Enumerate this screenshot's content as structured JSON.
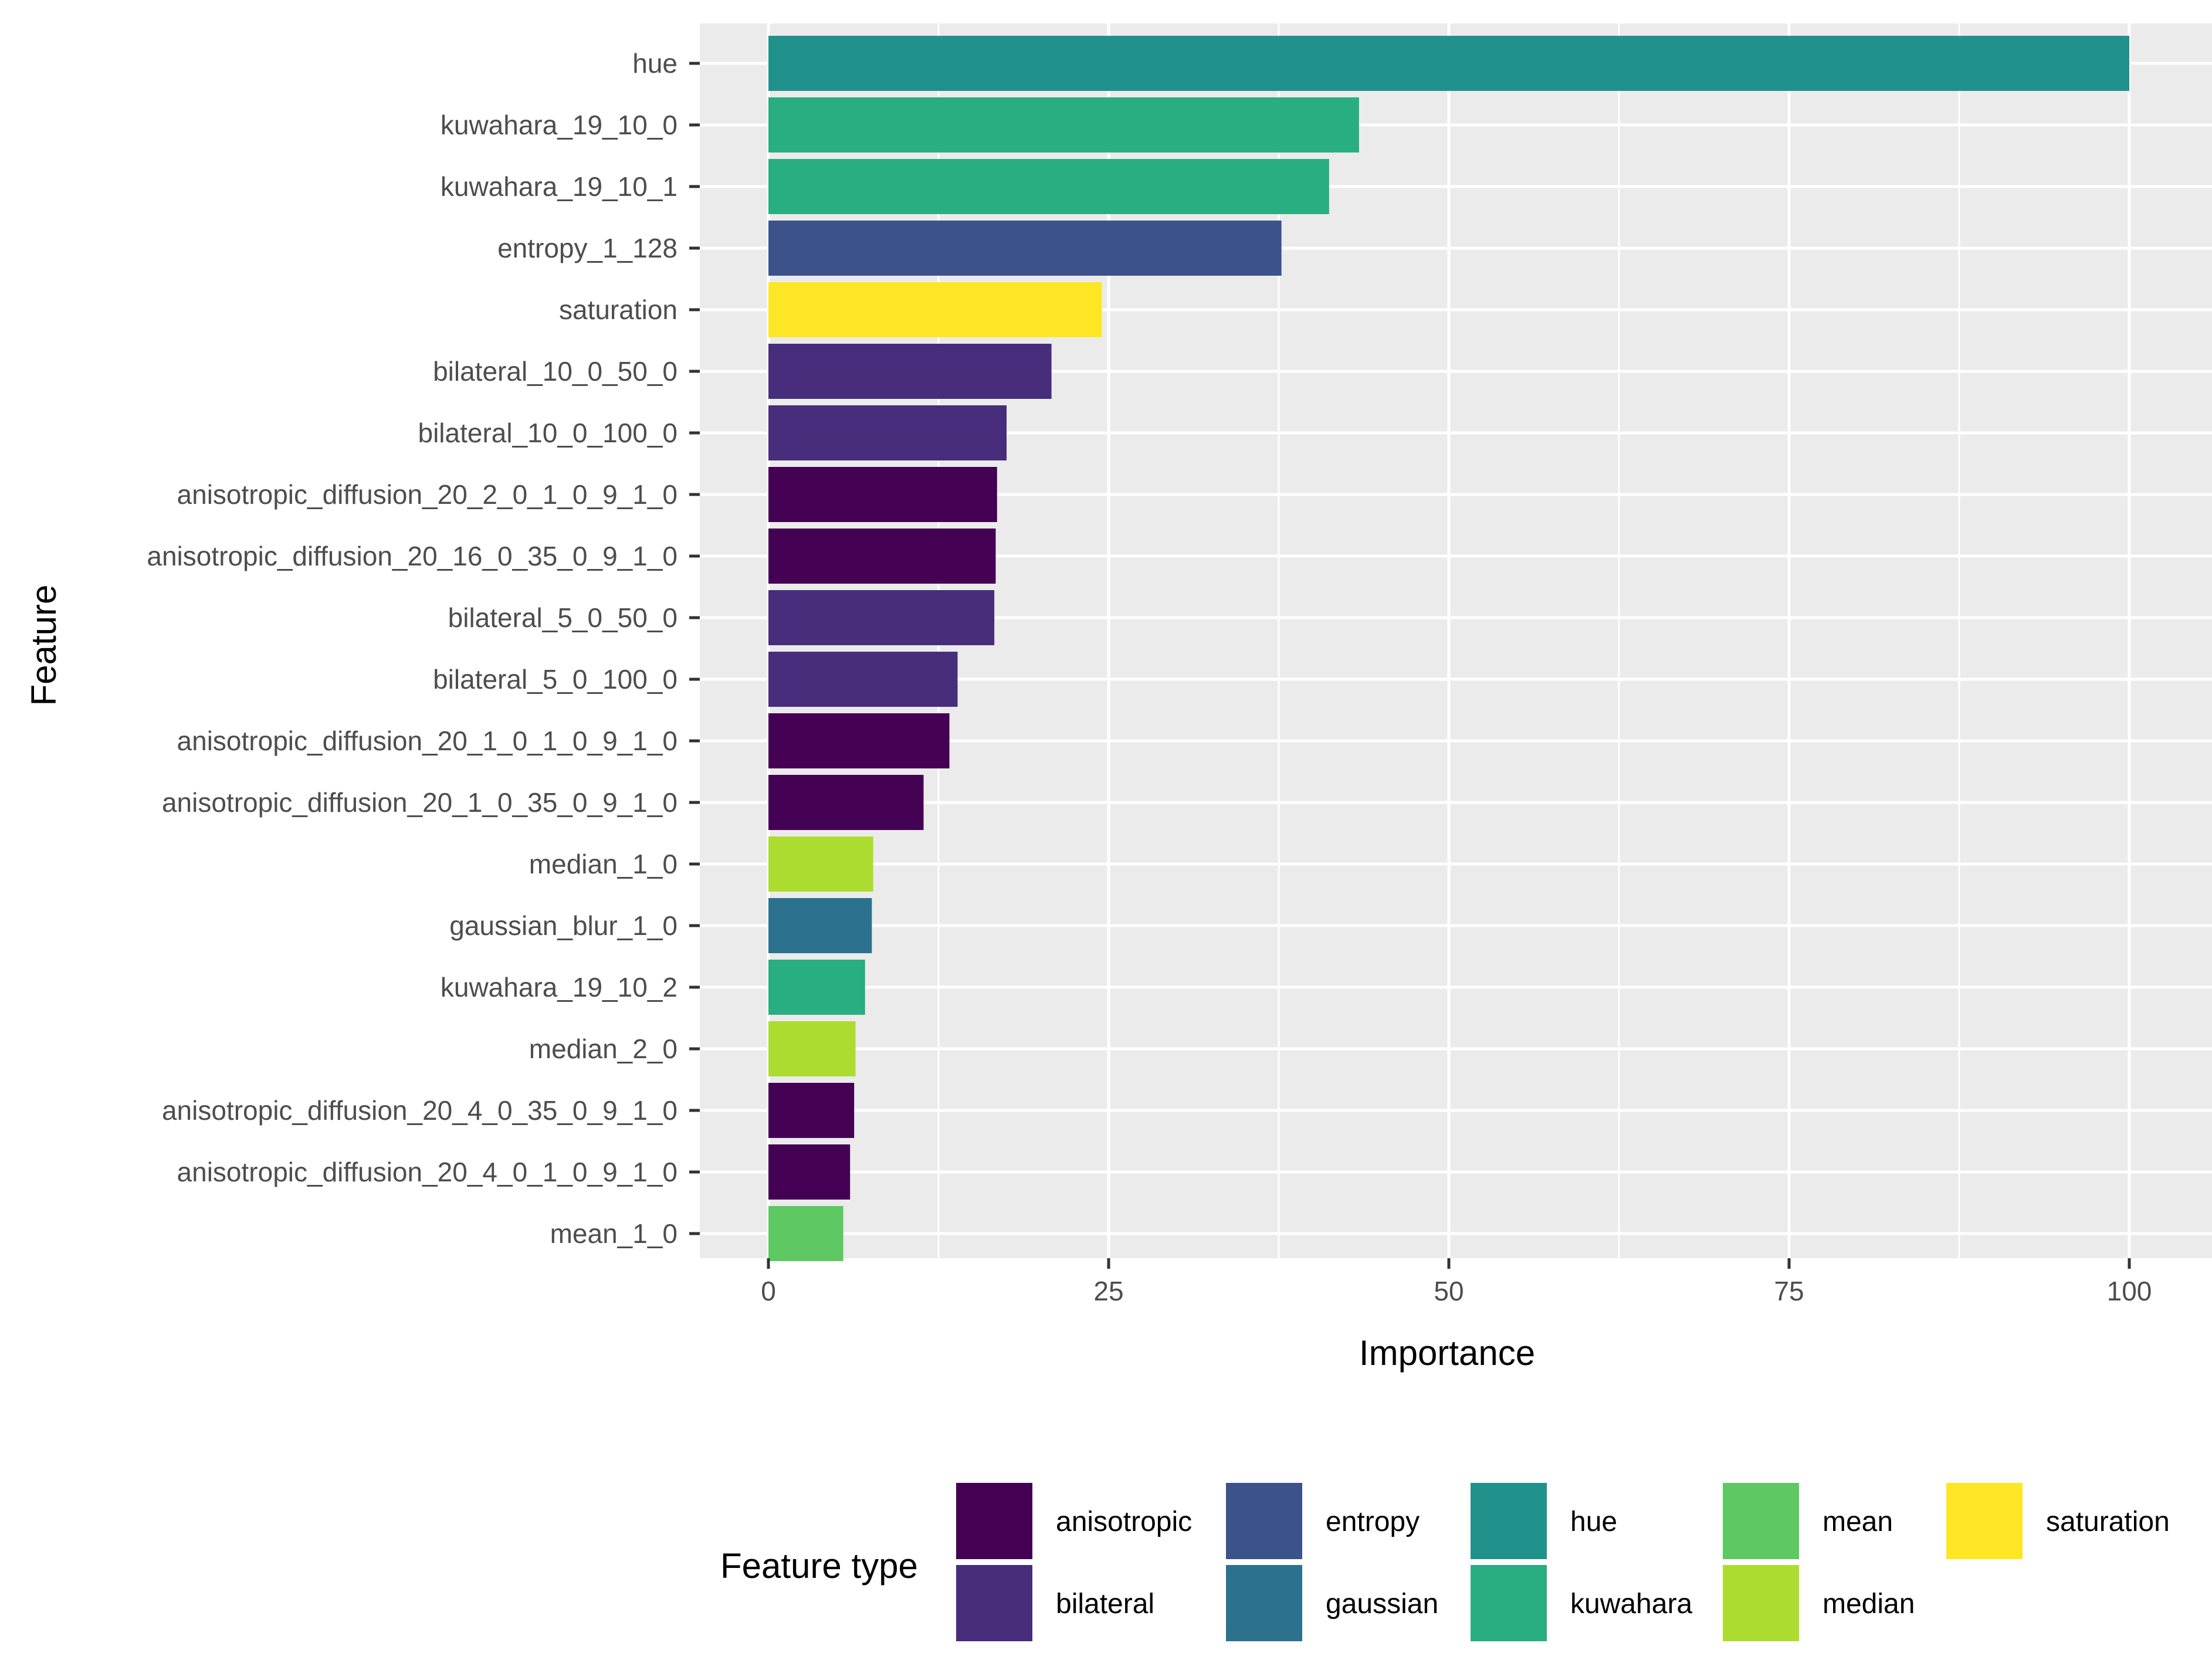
{
  "chart_data": {
    "type": "bar",
    "orientation": "horizontal",
    "title": "",
    "xlabel": "Importance",
    "ylabel": "Feature",
    "xlim": [
      0,
      102.5
    ],
    "xticks": [
      0,
      25,
      50,
      75,
      100
    ],
    "xtick_labels": [
      "0",
      "25",
      "50",
      "75",
      "100"
    ],
    "grid": true,
    "categories": [
      "hue",
      "kuwahara_19_10_0",
      "kuwahara_19_10_1",
      "entropy_1_128",
      "saturation",
      "bilateral_10_0_50_0",
      "bilateral_10_0_100_0",
      "anisotropic_diffusion_20_2_0_1_0_9_1_0",
      "anisotropic_diffusion_20_16_0_35_0_9_1_0",
      "bilateral_5_0_50_0",
      "bilateral_5_0_100_0",
      "anisotropic_diffusion_20_1_0_1_0_9_1_0",
      "anisotropic_diffusion_20_1_0_35_0_9_1_0",
      "median_1_0",
      "gaussian_blur_1_0",
      "kuwahara_19_10_2",
      "median_2_0",
      "anisotropic_diffusion_20_4_0_35_0_9_1_0",
      "anisotropic_diffusion_20_4_0_1_0_9_1_0",
      "mean_1_0"
    ],
    "values": [
      100,
      43.4,
      41.2,
      37.7,
      24.5,
      20.8,
      17.5,
      16.8,
      16.7,
      16.6,
      13.9,
      13.3,
      11.4,
      7.7,
      7.6,
      7.1,
      6.4,
      6.3,
      6.0,
      5.5
    ],
    "feature_types": [
      "hue",
      "kuwahara",
      "kuwahara",
      "entropy",
      "saturation",
      "bilateral",
      "bilateral",
      "anisotropic",
      "anisotropic",
      "bilateral",
      "bilateral",
      "anisotropic",
      "anisotropic",
      "median",
      "gaussian",
      "kuwahara",
      "median",
      "anisotropic",
      "anisotropic",
      "mean"
    ],
    "legend": {
      "title": "Feature type",
      "position": "bottom",
      "entries": [
        {
          "label": "anisotropic",
          "color": "#440154"
        },
        {
          "label": "bilateral",
          "color": "#472d7b"
        },
        {
          "label": "entropy",
          "color": "#3b528b"
        },
        {
          "label": "gaussian",
          "color": "#2c728e"
        },
        {
          "label": "hue",
          "color": "#21918c"
        },
        {
          "label": "kuwahara",
          "color": "#28ae80"
        },
        {
          "label": "mean",
          "color": "#5ec962"
        },
        {
          "label": "median",
          "color": "#addc30"
        },
        {
          "label": "saturation",
          "color": "#fde725"
        }
      ]
    },
    "colors": {
      "panel_background": "#ebebeb",
      "grid": "#ffffff",
      "tick_text": "#4d4d4d",
      "tick_mark": "#333333"
    }
  }
}
